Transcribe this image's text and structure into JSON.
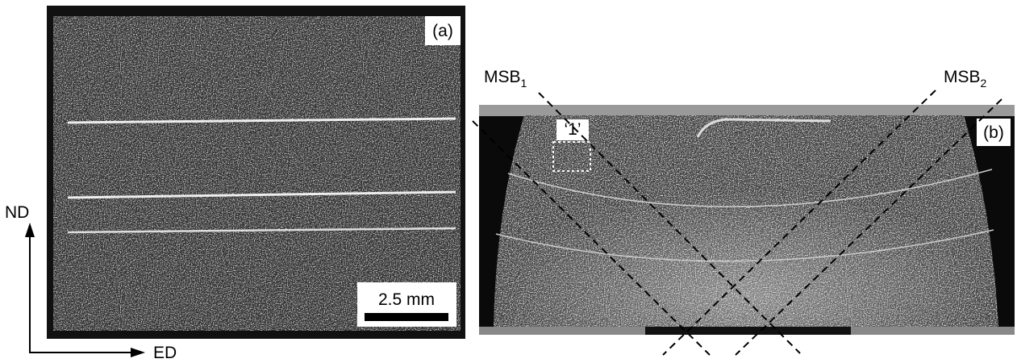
{
  "panel_a": {
    "label": "(a)",
    "scale_bar": "2.5 mm"
  },
  "panel_b": {
    "label": "(b)",
    "region_label": "‘1’",
    "bands": [
      {
        "name": "MSB",
        "subscript": "1"
      },
      {
        "name": "MSB",
        "subscript": "2"
      }
    ]
  },
  "axes": {
    "vertical": "ND",
    "horizontal": "ED"
  }
}
